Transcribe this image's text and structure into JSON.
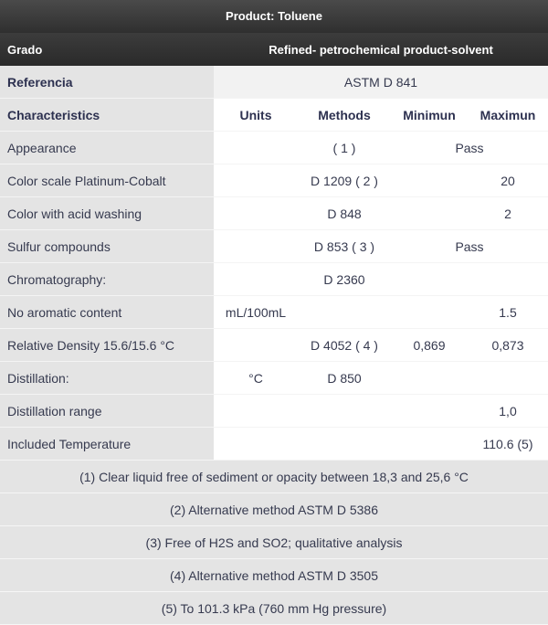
{
  "title": "Product: Toluene",
  "grado": {
    "label": "Grado",
    "value": "Refined- petrochemical product-solvent"
  },
  "referencia": {
    "label": "Referencia",
    "value": "ASTM D 841"
  },
  "headers": {
    "characteristics": "Characteristics",
    "units": "Units",
    "methods": "Methods",
    "minimum": "Minimun",
    "maximum": "Maximun"
  },
  "rows": [
    {
      "name": "Appearance",
      "units": "",
      "method": "( 1 )",
      "min": "",
      "max": "",
      "spec": "Pass"
    },
    {
      "name": "Color scale Platinum-Cobalt",
      "units": "",
      "method": "D 1209 ( 2 )",
      "min": "",
      "max": "20"
    },
    {
      "name": "Color with acid washing",
      "units": "",
      "method": "D 848",
      "min": "",
      "max": "2"
    },
    {
      "name": "Sulfur compounds",
      "units": "",
      "method": "D 853 ( 3 )",
      "min": "",
      "max": "",
      "spec": "Pass"
    },
    {
      "name": "Chromatography:",
      "units": "",
      "method": "D 2360",
      "min": "",
      "max": ""
    },
    {
      "name": "No aromatic content",
      "units": "mL/100mL",
      "method": "",
      "min": "",
      "max": "1.5"
    },
    {
      "name": "Relative Density 15.6/15.6 °C",
      "units": "",
      "method": "D 4052 ( 4 )",
      "min": "0,869",
      "max": "0,873"
    },
    {
      "name": "Distillation:",
      "units": "°C",
      "method": "D 850",
      "min": "",
      "max": ""
    },
    {
      "name": "Distillation range",
      "units": "",
      "method": "",
      "min": "",
      "max": "1,0"
    },
    {
      "name": "Included Temperature",
      "units": "",
      "method": "",
      "min": "",
      "max": "110.6 (5)"
    }
  ],
  "notes": [
    "(1) Clear liquid free of sediment or opacity between 18,3 and 25,6 °C",
    "(2) Alternative method ASTM D 5386",
    "(3) Free of H2S and SO2; qualitative analysis",
    "(4) Alternative method ASTM D 3505",
    "(5) To 101.3 kPa (760 mm Hg pressure)"
  ]
}
